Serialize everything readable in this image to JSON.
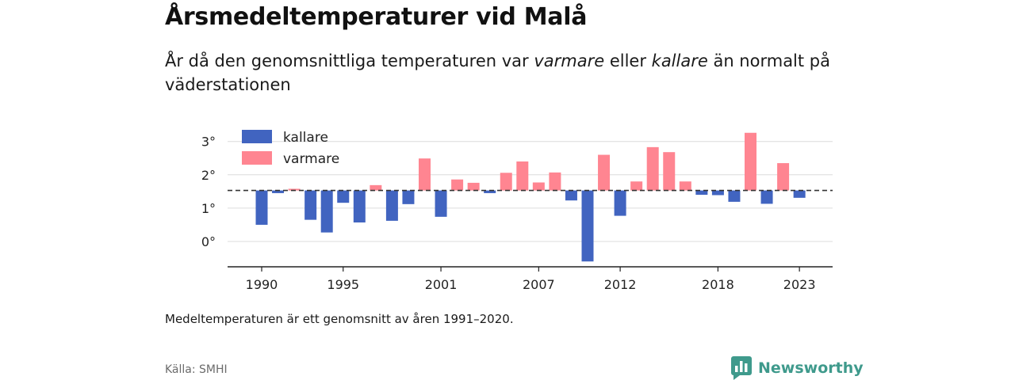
{
  "header": {
    "title": "Årsmedeltemperaturer vid Malå",
    "subtitle_part1": "År då den genomsnittliga temperaturen var ",
    "subtitle_em1": "varmare",
    "subtitle_part2": " eller ",
    "subtitle_em2": "kallare",
    "subtitle_part3": " än normalt på väderstationen"
  },
  "footer": {
    "note": "Medeltemperaturen är ett genomsnitt av åren 1991–2020.",
    "source": "Källa: SMHI",
    "brand": "Newsworthy"
  },
  "colors": {
    "colder": "#4164c0",
    "warmer": "#ff8591",
    "brand": "#3f9a8c"
  },
  "chart_data": {
    "type": "bar",
    "title": "Årsmedeltemperaturer vid Malå",
    "baseline": 1.53,
    "ylim": [
      -0.6,
      3.4
    ],
    "yticks": [
      0,
      1,
      2,
      3
    ],
    "ytick_labels": [
      "0°",
      "1°",
      "2°",
      "3°"
    ],
    "xticks": [
      1990,
      1995,
      2001,
      2007,
      2012,
      2018,
      2023
    ],
    "legend": {
      "position": "top-left",
      "entries": [
        {
          "label": "kallare",
          "key": "colder"
        },
        {
          "label": "varmare",
          "key": "warmer"
        }
      ]
    },
    "grid": true,
    "x": [
      1990,
      1991,
      1992,
      1993,
      1994,
      1995,
      1996,
      1997,
      1998,
      1999,
      2000,
      2001,
      2002,
      2003,
      2004,
      2005,
      2006,
      2007,
      2008,
      2009,
      2010,
      2011,
      2012,
      2013,
      2014,
      2015,
      2016,
      2017,
      2018,
      2019,
      2020,
      2021,
      2022,
      2023
    ],
    "values": [
      0.5,
      1.45,
      1.58,
      0.65,
      0.27,
      1.16,
      0.57,
      1.69,
      0.62,
      1.12,
      2.49,
      0.74,
      1.86,
      1.76,
      1.45,
      2.06,
      2.4,
      1.77,
      2.07,
      1.23,
      -0.6,
      2.6,
      0.77,
      1.8,
      2.83,
      2.68,
      1.8,
      1.4,
      1.39,
      1.19,
      3.26,
      1.13,
      2.35,
      1.31
    ]
  }
}
